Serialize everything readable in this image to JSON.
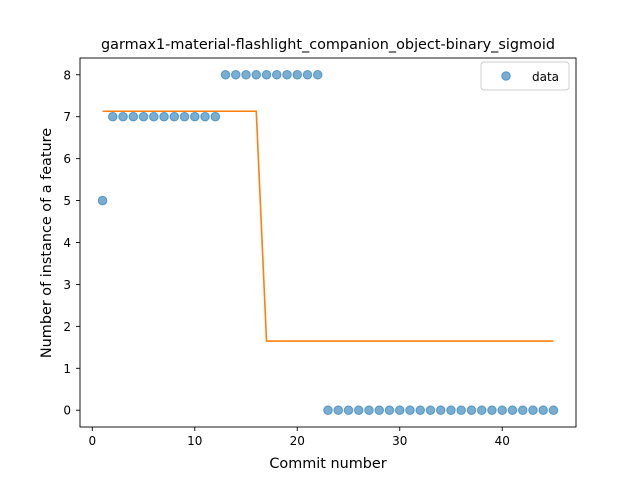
{
  "chart_data": {
    "type": "scatter",
    "title": "garmax1-material-flashlight_companion_object-binary_sigmoid",
    "xlabel": "Commit number",
    "ylabel": "Number of instance of a feature",
    "xlim": [
      -1.2,
      47.2
    ],
    "ylim": [
      -0.4,
      8.4
    ],
    "x_ticks": [
      0,
      10,
      20,
      30,
      40
    ],
    "y_ticks": [
      0,
      1,
      2,
      3,
      4,
      5,
      6,
      7,
      8
    ],
    "grid": false,
    "legend_position": "top-right",
    "series": [
      {
        "name": "data",
        "kind": "scatter",
        "color": "#1f77b4",
        "x": [
          1,
          2,
          3,
          4,
          5,
          6,
          7,
          8,
          9,
          10,
          11,
          12,
          13,
          14,
          15,
          16,
          17,
          18,
          19,
          20,
          21,
          22,
          23,
          24,
          25,
          26,
          27,
          28,
          29,
          30,
          31,
          32,
          33,
          34,
          35,
          36,
          37,
          38,
          39,
          40,
          41,
          42,
          43,
          44,
          45
        ],
        "y": [
          5,
          7,
          7,
          7,
          7,
          7,
          7,
          7,
          7,
          7,
          7,
          7,
          8,
          8,
          8,
          8,
          8,
          8,
          8,
          8,
          8,
          8,
          0,
          0,
          0,
          0,
          0,
          0,
          0,
          0,
          0,
          0,
          0,
          0,
          0,
          0,
          0,
          0,
          0,
          0,
          0,
          0,
          0,
          0,
          0
        ]
      },
      {
        "kind": "line",
        "color": "#ff7f0e",
        "x": [
          1,
          16,
          17,
          45
        ],
        "y": [
          7.13,
          7.13,
          1.65,
          1.65
        ]
      }
    ]
  }
}
